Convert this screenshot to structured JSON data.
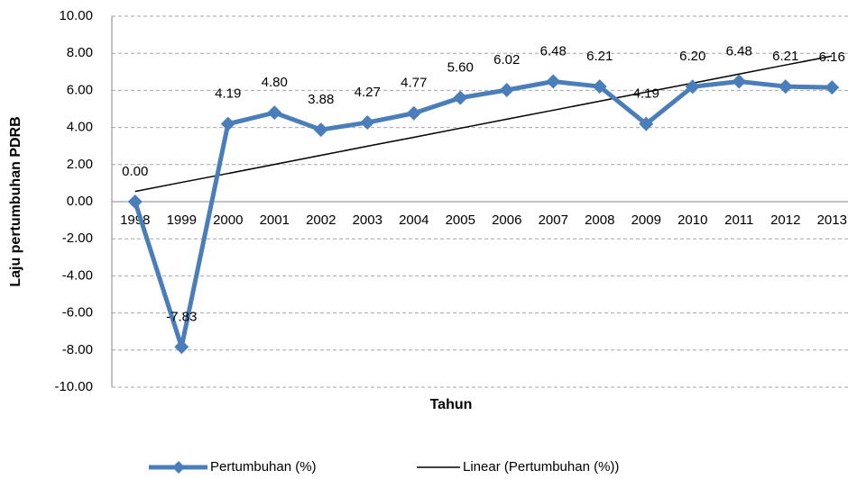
{
  "chart_data": {
    "type": "line",
    "x_label": "Tahun",
    "y_label": "Laju pertumbuhan PDRB",
    "categories": [
      "1998",
      "1999",
      "2000",
      "2001",
      "2002",
      "2003",
      "2004",
      "2005",
      "2006",
      "2007",
      "2008",
      "2009",
      "2010",
      "2011",
      "2012",
      "2013"
    ],
    "series": [
      {
        "name": "Pertumbuhan (%)",
        "color": "#4a7ebb",
        "values": [
          0.0,
          -7.83,
          4.19,
          4.8,
          3.88,
          4.27,
          4.77,
          5.6,
          6.02,
          6.48,
          6.21,
          4.19,
          6.2,
          6.48,
          6.21,
          6.16
        ],
        "value_labels": [
          "0.00",
          "-7.83",
          "4.19",
          "4.80",
          "3.88",
          "4.27",
          "4.77",
          "5.60",
          "6.02",
          "6.48",
          "6.21",
          "4.19",
          "6.20",
          "6.48",
          "6.21",
          "6.16"
        ]
      },
      {
        "name": "Linear (Pertumbuhan (%))",
        "color": "#000000",
        "values": [
          0.55,
          1.04,
          1.52,
          2.01,
          2.5,
          2.99,
          3.47,
          3.96,
          4.45,
          4.93,
          5.42,
          5.91,
          6.39,
          6.88,
          7.37,
          7.85
        ]
      }
    ],
    "ylim": [
      -10,
      10
    ],
    "yticks": [
      {
        "value": -10,
        "label": "-10.00"
      },
      {
        "value": -8,
        "label": "-8.00"
      },
      {
        "value": -6,
        "label": "-6.00"
      },
      {
        "value": -4,
        "label": "-4.00"
      },
      {
        "value": -2,
        "label": "-2.00"
      },
      {
        "value": 0,
        "label": "0.00"
      },
      {
        "value": 2,
        "label": "2.00"
      },
      {
        "value": 4,
        "label": "4.00"
      },
      {
        "value": 6,
        "label": "6.00"
      },
      {
        "value": 8,
        "label": "8.00"
      },
      {
        "value": 10,
        "label": "10.00"
      }
    ],
    "grid": true
  }
}
